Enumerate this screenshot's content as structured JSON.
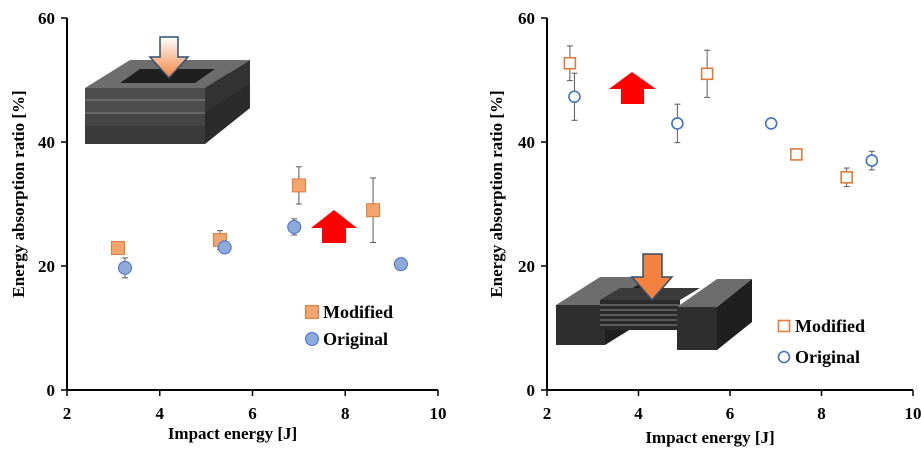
{
  "colors": {
    "modified_fill": "#F4A46E",
    "modified_stroke": "#E07B39",
    "original_fill": "#8EA9DB",
    "original_stroke": "#4472C4",
    "arrow_red": "#FF0000",
    "arrow_orange": "#F4813E",
    "axis": "#000000",
    "errorbar": "#595959"
  },
  "chart_data": [
    {
      "type": "scatter",
      "title": "",
      "xlabel": "Impact energy [J]",
      "ylabel": "Energy absorption ratio [%]",
      "xlim": [
        2,
        10
      ],
      "ylim": [
        0,
        60
      ],
      "xticks": [
        "2",
        "4",
        "6",
        "8",
        "10"
      ],
      "yticks": [
        "0",
        "20",
        "40",
        "60"
      ],
      "marker_style": "filled",
      "legend_position": "bottom-right",
      "illustration": "stacked square frame with downward arrow",
      "red_arrow": "up",
      "series": [
        {
          "name": "Modified",
          "marker": "square",
          "points": [
            {
              "x": 3.1,
              "y": 22.9,
              "err": 0
            },
            {
              "x": 5.3,
              "y": 24.2,
              "err": 1.5
            },
            {
              "x": 7.0,
              "y": 33.0,
              "err": 3.0
            },
            {
              "x": 8.6,
              "y": 29.0,
              "err": 5.2
            }
          ]
        },
        {
          "name": "Original",
          "marker": "circle",
          "points": [
            {
              "x": 3.25,
              "y": 19.7,
              "err": 1.6
            },
            {
              "x": 5.4,
              "y": 23.0,
              "err": 0
            },
            {
              "x": 6.9,
              "y": 26.3,
              "err": 1.3
            },
            {
              "x": 9.2,
              "y": 20.3,
              "err": 0
            }
          ]
        }
      ]
    },
    {
      "type": "scatter",
      "title": "",
      "xlabel": "Impact energy [J]",
      "ylabel": "Energy absorption ratio [%]",
      "xlim": [
        2,
        10
      ],
      "ylim": [
        0,
        60
      ],
      "xticks": [
        "2",
        "4",
        "6",
        "8",
        "10"
      ],
      "yticks": [
        "0",
        "20",
        "40",
        "60"
      ],
      "marker_style": "open",
      "legend_position": "bottom-right",
      "illustration": "grooved bridge block with downward arrow",
      "red_arrow": "up",
      "series": [
        {
          "name": "Modified",
          "marker": "square",
          "points": [
            {
              "x": 2.5,
              "y": 52.7,
              "err": 2.8
            },
            {
              "x": 5.5,
              "y": 51.0,
              "err": 3.8
            },
            {
              "x": 7.45,
              "y": 38.0,
              "err": 0.8
            },
            {
              "x": 8.55,
              "y": 34.3,
              "err": 1.5
            }
          ]
        },
        {
          "name": "Original",
          "marker": "circle",
          "points": [
            {
              "x": 2.6,
              "y": 47.3,
              "err": 3.8
            },
            {
              "x": 4.85,
              "y": 43.0,
              "err": 3.1
            },
            {
              "x": 6.9,
              "y": 43.0,
              "err": 0.6
            },
            {
              "x": 9.1,
              "y": 37.0,
              "err": 1.5
            }
          ]
        }
      ]
    }
  ]
}
